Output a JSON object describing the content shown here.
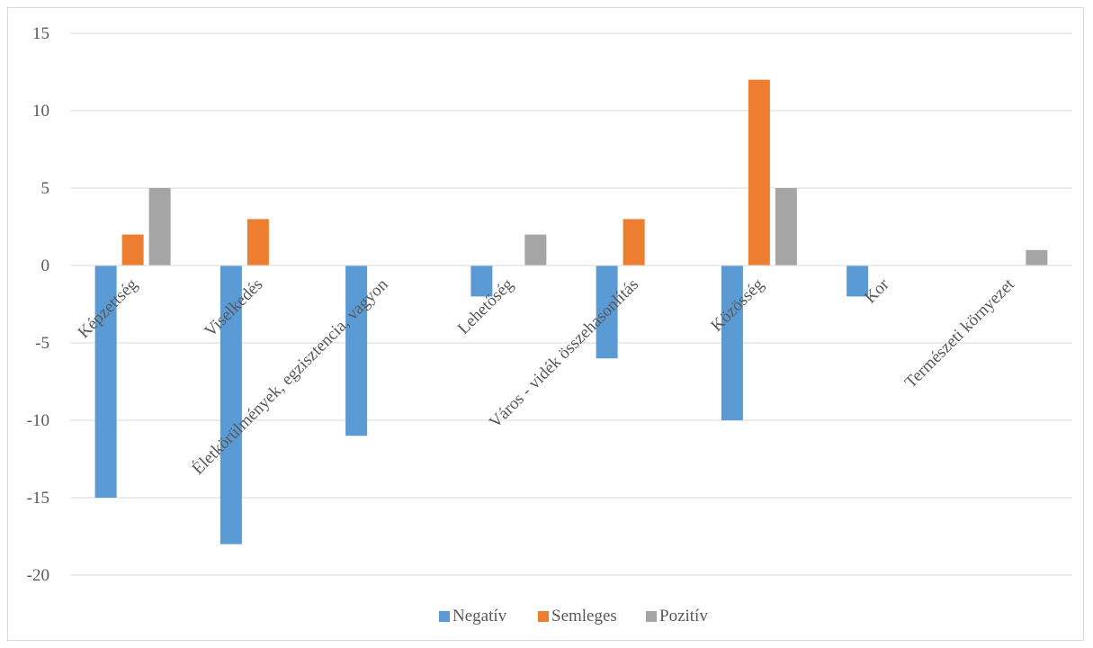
{
  "chart_data": {
    "type": "bar",
    "categories": [
      "Képzettség",
      "Viselkedés",
      "Életkörülmények, egzisztencia, vagyon",
      "Lehetőség",
      "Város - vidék összehasonlítás",
      "Közösség",
      "Kor",
      "Természeti környezet"
    ],
    "series": [
      {
        "name": "Negatív",
        "color": "#5b9bd5",
        "values": [
          -15,
          -18,
          -11,
          -2,
          -6,
          -10,
          -2,
          0
        ]
      },
      {
        "name": "Semleges",
        "color": "#ed7d31",
        "values": [
          2,
          3,
          0,
          0,
          3,
          12,
          0,
          0
        ]
      },
      {
        "name": "Pozitív",
        "color": "#a5a5a5",
        "values": [
          5,
          0,
          0,
          2,
          0,
          5,
          0,
          1
        ]
      }
    ],
    "yticks": [
      "15",
      "10",
      "5",
      "0",
      "-5",
      "-10",
      "-15",
      "-20"
    ],
    "ylim": [
      -20,
      15
    ],
    "grid": true,
    "legend": "bottom-center",
    "title": "",
    "xlabel": "",
    "ylabel": ""
  }
}
